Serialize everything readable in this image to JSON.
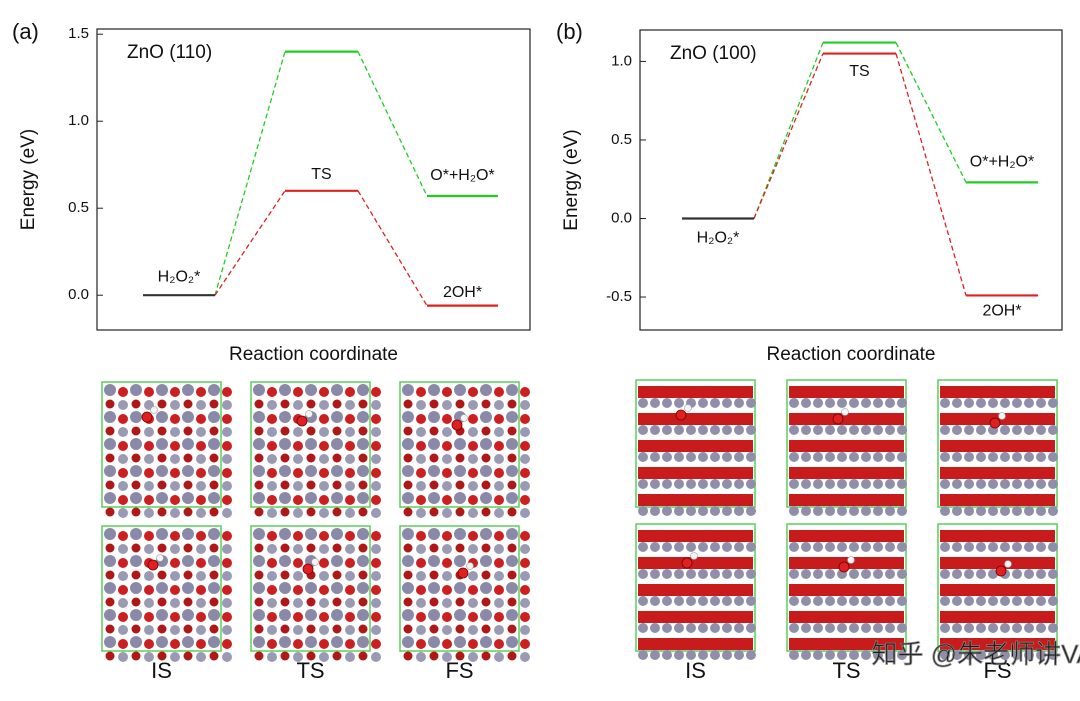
{
  "chart_data": [
    {
      "type": "energy-profile",
      "panel_label": "(a)",
      "title": "ZnO (110)",
      "y_label": "Energy (eV)",
      "x_label": "Reaction coordinate",
      "ylim": [
        -0.2,
        1.53
      ],
      "yticks": [
        {
          "value": 0,
          "label": "0.0"
        },
        0.5,
        {
          "value": 1,
          "label": "1.0"
        },
        1.5
      ],
      "baseline_color": "#333333",
      "series": [
        {
          "color": "#22cc22",
          "values": [
            0,
            1.4,
            0.57
          ]
        },
        {
          "color": "#dd2222",
          "values": [
            0,
            0.6,
            -0.06
          ]
        }
      ],
      "annotations": [
        "H₂O₂*",
        "TS",
        "O*+H₂O*",
        "2OH*"
      ],
      "structure_labels": [
        "IS",
        "TS",
        "FS"
      ]
    },
    {
      "type": "energy-profile",
      "panel_label": "(b)",
      "title": "ZnO (100)",
      "y_label": "Energy (eV)",
      "x_label": "Reaction coordinate",
      "ylim": [
        -0.71,
        1.2
      ],
      "yticks": [
        -0.5,
        {
          "value": 0,
          "label": "0.0"
        },
        0.5,
        {
          "value": 1,
          "label": "1.0"
        }
      ],
      "baseline_color": "#333333",
      "series": [
        {
          "color": "#22cc22",
          "values": [
            0,
            1.12,
            0.23
          ]
        },
        {
          "color": "#dd2222",
          "values": [
            0,
            1.05,
            -0.49
          ]
        }
      ],
      "annotations": [
        "H₂O₂*",
        "TS",
        "O*+H₂O*",
        "2OH*"
      ],
      "structure_labels": [
        "IS",
        "TS",
        "FS"
      ]
    }
  ],
  "watermark": "知乎 @朱老师讲VASP"
}
